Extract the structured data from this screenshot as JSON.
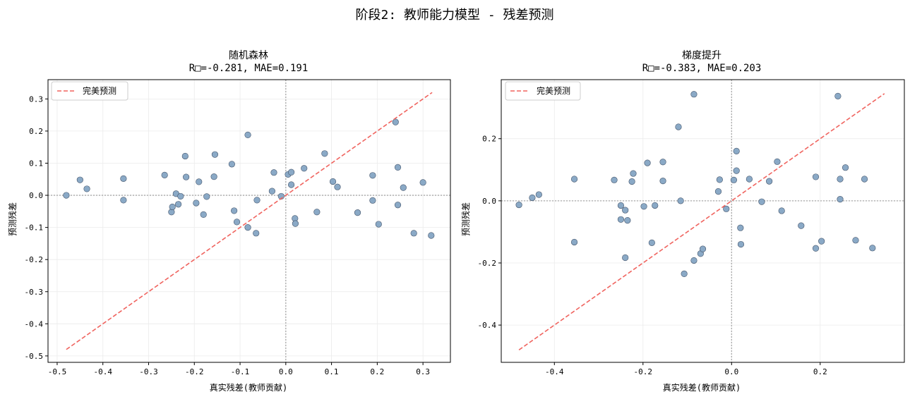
{
  "figure": {
    "suptitle": "阶段2: 教师能力模型 - 残差预测"
  },
  "colors": {
    "point_fill": "#8aa9c6",
    "point_edge": "#44546a",
    "perfect_line": "#f0645f",
    "zero_line": "#a9a9a9",
    "grid": "#ebebeb"
  },
  "chart_data": [
    {
      "type": "scatter",
      "title": "随机森林",
      "subtitle": "R□=-0.281, MAE=0.191",
      "xlabel": "真实残差(教师贡献)",
      "ylabel": "预测残差",
      "xlim": [
        -0.52,
        0.36
      ],
      "ylim": [
        -0.52,
        0.36
      ],
      "xticks": [
        -0.5,
        -0.4,
        -0.3,
        -0.2,
        -0.1,
        0.0,
        0.1,
        0.2,
        0.3
      ],
      "xtick_labels": [
        "-0.5",
        "-0.4",
        "-0.3",
        "-0.2",
        "-0.1",
        "0.0",
        "0.1",
        "0.2",
        "0.3"
      ],
      "yticks": [
        -0.5,
        -0.4,
        -0.3,
        -0.2,
        -0.1,
        0.0,
        0.1,
        0.2,
        0.3
      ],
      "ytick_labels": [
        "-0.5",
        "-0.4",
        "-0.3",
        "-0.2",
        "-0.1",
        "0.0",
        "0.1",
        "0.2",
        "0.3"
      ],
      "grid": true,
      "legend": {
        "placement": "top-left",
        "entries": [
          "完美预测"
        ]
      },
      "perfect_line": {
        "x": [
          -0.48,
          0.32
        ],
        "y": [
          -0.48,
          0.32
        ]
      },
      "points": [
        [
          -0.48,
          0.0
        ],
        [
          -0.45,
          0.048
        ],
        [
          -0.435,
          0.02
        ],
        [
          -0.355,
          0.052
        ],
        [
          -0.355,
          -0.015
        ],
        [
          -0.265,
          0.063
        ],
        [
          -0.25,
          -0.052
        ],
        [
          -0.248,
          -0.036
        ],
        [
          -0.24,
          0.005
        ],
        [
          -0.235,
          -0.028
        ],
        [
          -0.23,
          -0.003
        ],
        [
          -0.22,
          0.122
        ],
        [
          -0.218,
          0.057
        ],
        [
          -0.196,
          -0.024
        ],
        [
          -0.19,
          0.042
        ],
        [
          -0.18,
          -0.06
        ],
        [
          -0.173,
          -0.004
        ],
        [
          -0.155,
          0.127
        ],
        [
          -0.157,
          0.058
        ],
        [
          -0.118,
          0.097
        ],
        [
          -0.113,
          -0.048
        ],
        [
          -0.107,
          -0.083
        ],
        [
          -0.083,
          0.188
        ],
        [
          -0.083,
          -0.1
        ],
        [
          -0.063,
          -0.015
        ],
        [
          -0.065,
          -0.118
        ],
        [
          -0.03,
          0.013
        ],
        [
          -0.026,
          0.071
        ],
        [
          -0.01,
          -0.003
        ],
        [
          0.005,
          0.065
        ],
        [
          0.012,
          0.072
        ],
        [
          0.012,
          0.033
        ],
        [
          0.02,
          -0.072
        ],
        [
          0.021,
          -0.088
        ],
        [
          0.04,
          0.084
        ],
        [
          0.068,
          -0.052
        ],
        [
          0.085,
          0.13
        ],
        [
          0.103,
          0.043
        ],
        [
          0.113,
          0.026
        ],
        [
          0.157,
          -0.054
        ],
        [
          0.19,
          0.062
        ],
        [
          0.19,
          -0.016
        ],
        [
          0.203,
          -0.09
        ],
        [
          0.24,
          0.228
        ],
        [
          0.245,
          0.087
        ],
        [
          0.245,
          -0.03
        ],
        [
          0.257,
          0.024
        ],
        [
          0.28,
          -0.118
        ],
        [
          0.3,
          0.04
        ],
        [
          0.318,
          -0.125
        ]
      ]
    },
    {
      "type": "scatter",
      "title": "梯度提升",
      "subtitle": "R□=-0.383, MAE=0.203",
      "xlabel": "真实残差(教师贡献)",
      "ylabel": "预测残差",
      "xlim": [
        -0.52,
        0.39
      ],
      "ylim": [
        -0.52,
        0.39
      ],
      "xticks": [
        -0.4,
        -0.2,
        0.0,
        0.2
      ],
      "xtick_labels": [
        "-0.4",
        "-0.2",
        "0.0",
        "0.2"
      ],
      "yticks": [
        -0.4,
        -0.2,
        0.0,
        0.2
      ],
      "ytick_labels": [
        "-0.4",
        "-0.2",
        "0.0",
        "0.2"
      ],
      "grid": true,
      "legend": {
        "placement": "top-left",
        "entries": [
          "完美预测"
        ]
      },
      "perfect_line": {
        "x": [
          -0.48,
          0.345
        ],
        "y": [
          -0.48,
          0.345
        ]
      },
      "points": [
        [
          -0.48,
          -0.013
        ],
        [
          -0.45,
          0.01
        ],
        [
          -0.435,
          0.02
        ],
        [
          -0.355,
          0.07
        ],
        [
          -0.355,
          -0.133
        ],
        [
          -0.265,
          0.067
        ],
        [
          -0.25,
          -0.015
        ],
        [
          -0.25,
          -0.06
        ],
        [
          -0.24,
          -0.03
        ],
        [
          -0.235,
          -0.063
        ],
        [
          -0.24,
          -0.183
        ],
        [
          -0.222,
          0.088
        ],
        [
          -0.225,
          0.062
        ],
        [
          -0.198,
          -0.018
        ],
        [
          -0.19,
          0.122
        ],
        [
          -0.18,
          -0.135
        ],
        [
          -0.173,
          -0.015
        ],
        [
          -0.155,
          0.125
        ],
        [
          -0.155,
          0.064
        ],
        [
          -0.12,
          0.238
        ],
        [
          -0.115,
          0.0
        ],
        [
          -0.107,
          -0.235
        ],
        [
          -0.085,
          0.343
        ],
        [
          -0.085,
          -0.192
        ],
        [
          -0.07,
          -0.17
        ],
        [
          -0.065,
          -0.155
        ],
        [
          -0.03,
          0.03
        ],
        [
          -0.027,
          0.068
        ],
        [
          -0.012,
          -0.026
        ],
        [
          0.005,
          0.067
        ],
        [
          0.011,
          0.16
        ],
        [
          0.011,
          0.097
        ],
        [
          0.02,
          -0.087
        ],
        [
          0.021,
          -0.14
        ],
        [
          0.04,
          0.07
        ],
        [
          0.068,
          -0.003
        ],
        [
          0.085,
          0.063
        ],
        [
          0.103,
          0.126
        ],
        [
          0.113,
          -0.032
        ],
        [
          0.157,
          -0.08
        ],
        [
          0.19,
          0.077
        ],
        [
          0.19,
          -0.153
        ],
        [
          0.203,
          -0.13
        ],
        [
          0.24,
          0.337
        ],
        [
          0.245,
          0.07
        ],
        [
          0.245,
          0.005
        ],
        [
          0.257,
          0.107
        ],
        [
          0.28,
          -0.127
        ],
        [
          0.3,
          0.07
        ],
        [
          0.318,
          -0.152
        ]
      ]
    }
  ]
}
